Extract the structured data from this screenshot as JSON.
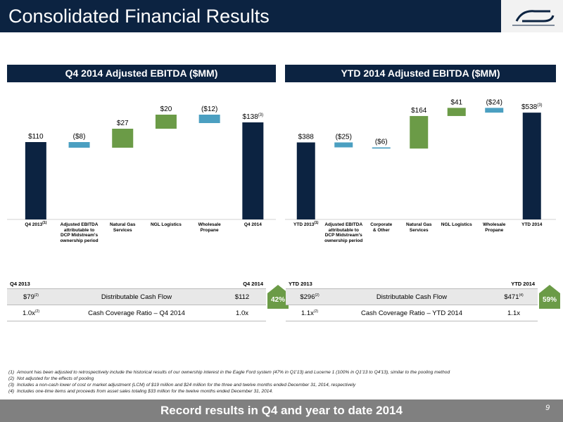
{
  "header": {
    "title": "Consolidated Financial Results"
  },
  "chart_data": [
    {
      "type": "waterfall",
      "title": "Q4 2014 Adjusted EBITDA ($MM)",
      "categories": [
        "Q4 2013",
        "Adjusted EBITDA\nattributable to\nDCP Midstream's\nownership period",
        "Natural Gas\nServices",
        "NGL Logistics",
        "Wholesale\nPropane",
        "Q4 2014"
      ],
      "category_notes": [
        "(1)",
        null,
        null,
        null,
        null,
        null
      ],
      "values": [
        110,
        -8,
        27,
        20,
        -12,
        138
      ],
      "value_labels": [
        "$110",
        "($8)",
        "$27",
        "$20",
        "($12)",
        "$138"
      ],
      "label_notes": [
        null,
        null,
        null,
        null,
        null,
        "(3)"
      ],
      "kinds": [
        "total",
        "delta",
        "delta",
        "delta",
        "delta",
        "total"
      ],
      "colors": {
        "total": "#0c2341",
        "positive": "#6b9b47",
        "negative": "#4b9fc1"
      },
      "ylim": [
        0,
        175
      ]
    },
    {
      "type": "waterfall",
      "title": "YTD 2014 Adjusted EBITDA ($MM)",
      "categories": [
        "YTD 2013",
        "Adjusted EBITDA\nattributable to\nDCP Midstream's\nownership period",
        "Corporate\n& Other",
        "Natural Gas\nServices",
        "NGL Logistics",
        "Wholesale\nPropane",
        "YTD 2014"
      ],
      "category_notes": [
        "(1)",
        null,
        null,
        null,
        null,
        null,
        null
      ],
      "values": [
        388,
        -25,
        -6,
        164,
        41,
        -24,
        538
      ],
      "value_labels": [
        "$388",
        "($25)",
        "($6)",
        "$164",
        "$41",
        "($24)",
        "$538"
      ],
      "label_notes": [
        null,
        null,
        null,
        null,
        null,
        null,
        "(3)"
      ],
      "kinds": [
        "total",
        "delta",
        "delta",
        "delta",
        "delta",
        "delta",
        "total"
      ],
      "colors": {
        "total": "#0c2341",
        "positive": "#6b9b47",
        "negative": "#4b9fc1"
      },
      "ylim": [
        0,
        620
      ]
    }
  ],
  "tables": [
    {
      "columns": [
        "Q4 2013",
        "Q4 2014"
      ],
      "rows": [
        {
          "cells": [
            "$79",
            "Distributable Cash Flow",
            "$112"
          ],
          "notes": [
            "(2)",
            null,
            null
          ]
        },
        {
          "cells": [
            "1.0x",
            "Cash Coverage Ratio – Q4 2014",
            "1.0x"
          ],
          "notes": [
            "(2)",
            null,
            null
          ]
        }
      ],
      "change": "42%"
    },
    {
      "columns": [
        "YTD 2013",
        "YTD 2014"
      ],
      "rows": [
        {
          "cells": [
            "$296",
            "Distributable Cash Flow",
            "$471"
          ],
          "notes": [
            "(2)",
            null,
            "(4)"
          ]
        },
        {
          "cells": [
            "1.1x",
            "Cash Coverage Ratio – YTD 2014",
            "1.1x"
          ],
          "notes": [
            "(2)",
            null,
            null
          ]
        }
      ],
      "change": "59%"
    }
  ],
  "footnotes": [
    {
      "mark": "(1)",
      "text": "Amount has been adjusted to retrospectively include the historical results of our ownership interest in the Eagle Ford system (47% in Q1'13) and Lucerne 1 (100% in Q1'13 to Q4'13), similar to the pooling method"
    },
    {
      "mark": "(2)",
      "text": "Not adjusted for the effects of pooling"
    },
    {
      "mark": "(3)",
      "text": "Includes a non-cash lower of cost or market adjustment (LCM) of $19 million and $24 million for the three and twelve months ended December 31, 2014, respectively"
    },
    {
      "mark": "(4)",
      "text": "Includes one-time items and proceeds from asset sales totaling $33 million for the twelve months ended December 31, 2014."
    }
  ],
  "footer": {
    "text": "Record results in Q4 and year to date 2014",
    "page": "9"
  }
}
